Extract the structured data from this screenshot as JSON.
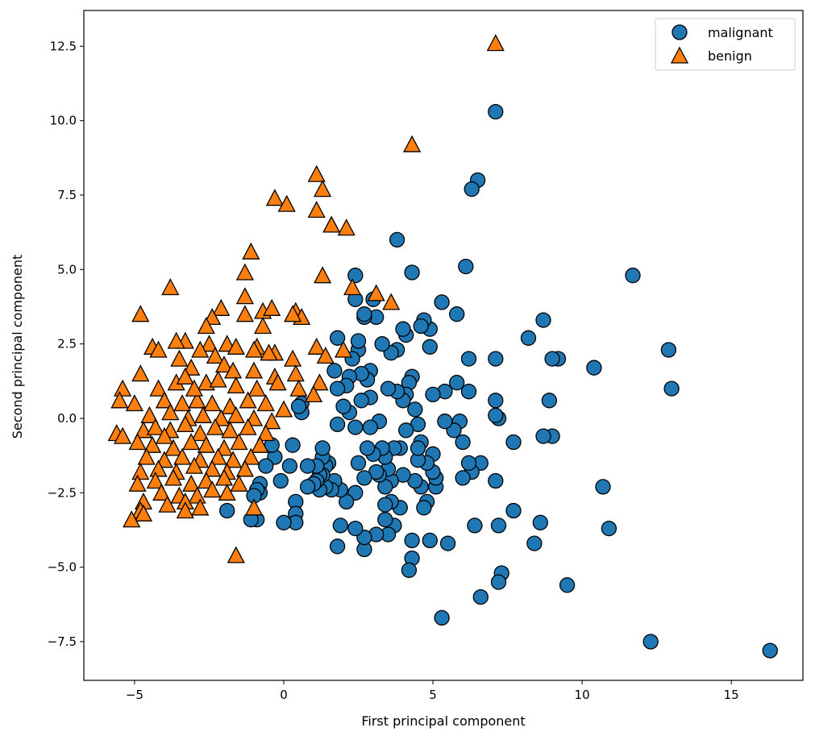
{
  "chart_data": {
    "type": "scatter",
    "title": "",
    "xlabel": "First principal component",
    "ylabel": "Second principal component",
    "xlim": [
      -6.7,
      17.4
    ],
    "ylim": [
      -8.8,
      13.7
    ],
    "xticks": [
      -5,
      0,
      5,
      10,
      15
    ],
    "xtick_labels": [
      "−5",
      "0",
      "5",
      "10",
      "15"
    ],
    "yticks": [
      -7.5,
      -5.0,
      -2.5,
      0.0,
      2.5,
      5.0,
      7.5,
      10.0,
      12.5
    ],
    "ytick_labels": [
      "−7.5",
      "−5.0",
      "−2.5",
      "0.0",
      "2.5",
      "5.0",
      "7.5",
      "10.0",
      "12.5"
    ],
    "grid": false,
    "legend_position": "top-right",
    "series": [
      {
        "name": "malignant",
        "marker": "circle",
        "color": "#1f77b4",
        "points": [
          [
            16.3,
            -7.8
          ],
          [
            12.3,
            -7.5
          ],
          [
            13.0,
            1.0
          ],
          [
            12.9,
            2.3
          ],
          [
            11.7,
            4.8
          ],
          [
            10.9,
            -3.7
          ],
          [
            10.7,
            -2.3
          ],
          [
            10.4,
            1.7
          ],
          [
            9.5,
            -5.6
          ],
          [
            9.2,
            2.0
          ],
          [
            9.0,
            2.0
          ],
          [
            9.0,
            -0.6
          ],
          [
            8.9,
            0.6
          ],
          [
            8.7,
            3.3
          ],
          [
            8.7,
            -0.6
          ],
          [
            8.6,
            -3.5
          ],
          [
            8.4,
            -4.2
          ],
          [
            8.2,
            2.7
          ],
          [
            7.7,
            -0.8
          ],
          [
            7.7,
            -3.1
          ],
          [
            7.3,
            -5.2
          ],
          [
            7.2,
            -5.5
          ],
          [
            7.2,
            -3.6
          ],
          [
            7.2,
            0.0
          ],
          [
            7.1,
            0.1
          ],
          [
            7.1,
            -2.1
          ],
          [
            7.1,
            2.0
          ],
          [
            7.1,
            0.6
          ],
          [
            7.1,
            10.3
          ],
          [
            6.6,
            -6.0
          ],
          [
            6.6,
            -1.5
          ],
          [
            6.5,
            8.0
          ],
          [
            6.4,
            -3.6
          ],
          [
            6.3,
            7.7
          ],
          [
            6.3,
            -1.8
          ],
          [
            6.2,
            -1.5
          ],
          [
            6.2,
            0.9
          ],
          [
            6.2,
            2.0
          ],
          [
            6.1,
            5.1
          ],
          [
            6.0,
            -2.0
          ],
          [
            6.0,
            -0.8
          ],
          [
            5.9,
            -0.1
          ],
          [
            5.8,
            1.2
          ],
          [
            5.8,
            3.5
          ],
          [
            5.7,
            -0.4
          ],
          [
            5.5,
            -4.2
          ],
          [
            5.4,
            0.9
          ],
          [
            5.4,
            -0.1
          ],
          [
            5.3,
            3.9
          ],
          [
            5.3,
            -6.7
          ],
          [
            5.1,
            -2.3
          ],
          [
            5.1,
            -2.0
          ],
          [
            5.0,
            -1.8
          ],
          [
            5.0,
            -1.2
          ],
          [
            5.0,
            0.8
          ],
          [
            4.9,
            3.0
          ],
          [
            4.9,
            2.4
          ],
          [
            4.9,
            -4.1
          ],
          [
            4.8,
            -1.5
          ],
          [
            4.8,
            -2.8
          ],
          [
            4.7,
            -3.0
          ],
          [
            4.7,
            3.3
          ],
          [
            4.6,
            3.1
          ],
          [
            4.6,
            -0.8
          ],
          [
            4.6,
            -2.3
          ],
          [
            4.5,
            -0.2
          ],
          [
            4.5,
            -1.4
          ],
          [
            4.5,
            -1.0
          ],
          [
            4.4,
            0.3
          ],
          [
            4.4,
            -2.1
          ],
          [
            4.3,
            4.9
          ],
          [
            4.3,
            -4.1
          ],
          [
            4.3,
            1.4
          ],
          [
            4.3,
            -4.7
          ],
          [
            4.2,
            -5.1
          ],
          [
            4.2,
            1.2
          ],
          [
            4.1,
            0.8
          ],
          [
            4.1,
            -0.4
          ],
          [
            4.1,
            2.8
          ],
          [
            4.0,
            3.0
          ],
          [
            4.0,
            0.6
          ],
          [
            4.0,
            -1.9
          ],
          [
            3.9,
            -1.0
          ],
          [
            3.9,
            -3.0
          ],
          [
            3.8,
            2.3
          ],
          [
            3.8,
            6.0
          ],
          [
            3.8,
            0.9
          ],
          [
            3.7,
            -3.6
          ],
          [
            3.7,
            -1.0
          ],
          [
            3.6,
            -2.1
          ],
          [
            3.6,
            -2.8
          ],
          [
            3.6,
            2.2
          ],
          [
            3.5,
            1.0
          ],
          [
            3.5,
            -1.7
          ],
          [
            3.5,
            -3.9
          ],
          [
            3.4,
            -3.4
          ],
          [
            3.4,
            -2.3
          ],
          [
            3.4,
            -2.9
          ],
          [
            3.4,
            -1.3
          ],
          [
            3.3,
            2.5
          ],
          [
            3.3,
            -1.0
          ],
          [
            3.2,
            -0.1
          ],
          [
            3.2,
            -1.9
          ],
          [
            3.1,
            3.4
          ],
          [
            3.1,
            -3.9
          ],
          [
            3.1,
            -1.8
          ],
          [
            3.0,
            4.0
          ],
          [
            3.0,
            -1.2
          ],
          [
            2.9,
            1.6
          ],
          [
            2.9,
            0.7
          ],
          [
            2.9,
            -0.3
          ],
          [
            2.8,
            -1.0
          ],
          [
            2.8,
            1.3
          ],
          [
            2.7,
            3.4
          ],
          [
            2.7,
            3.5
          ],
          [
            2.7,
            -4.4
          ],
          [
            2.7,
            -4.0
          ],
          [
            2.7,
            -2.0
          ],
          [
            2.6,
            0.6
          ],
          [
            2.6,
            1.5
          ],
          [
            2.5,
            -1.5
          ],
          [
            2.5,
            2.3
          ],
          [
            2.5,
            2.6
          ],
          [
            2.4,
            4.0
          ],
          [
            2.4,
            4.8
          ],
          [
            2.4,
            -0.3
          ],
          [
            2.4,
            -3.7
          ],
          [
            2.4,
            -2.5
          ],
          [
            2.3,
            2.0
          ],
          [
            2.2,
            0.2
          ],
          [
            2.2,
            1.4
          ],
          [
            2.1,
            1.1
          ],
          [
            2.1,
            -2.8
          ],
          [
            2.0,
            0.4
          ],
          [
            1.9,
            -2.4
          ],
          [
            1.9,
            -3.6
          ],
          [
            1.8,
            -4.3
          ],
          [
            1.8,
            -0.2
          ],
          [
            1.8,
            2.7
          ],
          [
            1.8,
            1.0
          ],
          [
            1.7,
            -2.1
          ],
          [
            1.7,
            1.6
          ],
          [
            1.6,
            -2.4
          ],
          [
            1.5,
            -1.5
          ],
          [
            1.4,
            -1.6
          ],
          [
            1.4,
            -2.3
          ],
          [
            1.3,
            -1.9
          ],
          [
            1.3,
            -1.3
          ],
          [
            1.3,
            -1.0
          ],
          [
            1.2,
            -1.9
          ],
          [
            1.2,
            -2.4
          ],
          [
            1.1,
            -1.6
          ],
          [
            1.1,
            -2.1
          ],
          [
            1.0,
            -2.2
          ],
          [
            0.8,
            -2.3
          ],
          [
            0.8,
            -1.6
          ],
          [
            0.6,
            0.5
          ],
          [
            0.6,
            0.2
          ],
          [
            0.5,
            0.4
          ],
          [
            0.4,
            -2.8
          ],
          [
            0.4,
            -3.2
          ],
          [
            0.4,
            -3.5
          ],
          [
            0.3,
            -0.9
          ],
          [
            0.2,
            -1.6
          ],
          [
            0.0,
            -3.5
          ],
          [
            -0.1,
            -2.1
          ],
          [
            -0.3,
            -1.3
          ],
          [
            -0.4,
            -0.9
          ],
          [
            -0.6,
            -1.6
          ],
          [
            -0.8,
            -2.2
          ],
          [
            -0.8,
            -2.5
          ],
          [
            -0.9,
            -2.4
          ],
          [
            -0.9,
            -3.4
          ],
          [
            -1.0,
            -2.6
          ],
          [
            -1.1,
            -3.4
          ],
          [
            -1.9,
            -3.1
          ]
        ]
      },
      {
        "name": "benign",
        "marker": "triangle",
        "color": "#ff7f0e",
        "points": [
          [
            7.1,
            12.6
          ],
          [
            4.3,
            9.2
          ],
          [
            1.1,
            8.2
          ],
          [
            1.3,
            7.7
          ],
          [
            -0.3,
            7.4
          ],
          [
            0.1,
            7.2
          ],
          [
            1.1,
            7.0
          ],
          [
            1.6,
            6.5
          ],
          [
            2.1,
            6.4
          ],
          [
            -1.1,
            5.6
          ],
          [
            -1.3,
            4.9
          ],
          [
            1.3,
            4.8
          ],
          [
            2.3,
            4.4
          ],
          [
            -3.8,
            4.4
          ],
          [
            3.1,
            4.2
          ],
          [
            -1.3,
            4.1
          ],
          [
            3.6,
            3.9
          ],
          [
            -0.7,
            3.6
          ],
          [
            -0.4,
            3.7
          ],
          [
            -2.1,
            3.7
          ],
          [
            0.4,
            3.6
          ],
          [
            0.6,
            3.4
          ],
          [
            0.3,
            3.5
          ],
          [
            -4.8,
            3.5
          ],
          [
            -2.4,
            3.4
          ],
          [
            -1.3,
            3.5
          ],
          [
            -2.6,
            3.1
          ],
          [
            -0.7,
            3.1
          ],
          [
            -3.3,
            2.6
          ],
          [
            -3.6,
            2.6
          ],
          [
            -2.5,
            2.5
          ],
          [
            -1.9,
            2.5
          ],
          [
            -1.6,
            2.4
          ],
          [
            -2.8,
            2.3
          ],
          [
            -4.4,
            2.4
          ],
          [
            -4.2,
            2.3
          ],
          [
            -0.9,
            2.4
          ],
          [
            -0.3,
            2.2
          ],
          [
            1.1,
            2.4
          ],
          [
            1.4,
            2.1
          ],
          [
            2.0,
            2.3
          ],
          [
            0.3,
            2.0
          ],
          [
            -0.5,
            2.2
          ],
          [
            -1.0,
            2.3
          ],
          [
            -2.3,
            2.1
          ],
          [
            -3.5,
            2.0
          ],
          [
            -3.1,
            1.7
          ],
          [
            -2.0,
            1.8
          ],
          [
            -1.7,
            1.6
          ],
          [
            -1.0,
            1.6
          ],
          [
            -0.3,
            1.4
          ],
          [
            0.4,
            1.5
          ],
          [
            1.2,
            1.2
          ],
          [
            -4.8,
            1.5
          ],
          [
            -5.4,
            1.0
          ],
          [
            -4.2,
            1.0
          ],
          [
            -3.6,
            1.2
          ],
          [
            -3.3,
            1.4
          ],
          [
            -2.6,
            1.2
          ],
          [
            -2.2,
            1.3
          ],
          [
            -1.6,
            1.1
          ],
          [
            -0.9,
            1.0
          ],
          [
            -0.2,
            1.2
          ],
          [
            0.5,
            1.0
          ],
          [
            1.0,
            0.8
          ],
          [
            -5.5,
            0.6
          ],
          [
            -5.0,
            0.5
          ],
          [
            -4.0,
            0.6
          ],
          [
            -3.4,
            0.5
          ],
          [
            -2.9,
            0.6
          ],
          [
            -2.4,
            0.5
          ],
          [
            -1.8,
            0.4
          ],
          [
            -1.2,
            0.6
          ],
          [
            -0.6,
            0.5
          ],
          [
            0.0,
            0.3
          ],
          [
            -4.5,
            0.1
          ],
          [
            -3.8,
            0.2
          ],
          [
            -3.2,
            0.0
          ],
          [
            -2.7,
            0.1
          ],
          [
            -2.1,
            0.0
          ],
          [
            -1.6,
            0.1
          ],
          [
            -1.0,
            0.0
          ],
          [
            -0.4,
            -0.1
          ],
          [
            -5.6,
            -0.5
          ],
          [
            -5.4,
            -0.6
          ],
          [
            -4.7,
            -0.4
          ],
          [
            -4.3,
            -0.3
          ],
          [
            -3.8,
            -0.4
          ],
          [
            -3.3,
            -0.2
          ],
          [
            -2.8,
            -0.5
          ],
          [
            -2.3,
            -0.3
          ],
          [
            -1.8,
            -0.4
          ],
          [
            -1.2,
            -0.3
          ],
          [
            -0.6,
            -0.5
          ],
          [
            -4.9,
            -0.8
          ],
          [
            -4.4,
            -0.9
          ],
          [
            -3.7,
            -1.0
          ],
          [
            -3.1,
            -0.8
          ],
          [
            -2.6,
            -0.9
          ],
          [
            -2.0,
            -1.0
          ],
          [
            -1.5,
            -0.8
          ],
          [
            -0.8,
            -0.9
          ],
          [
            -4.6,
            -1.3
          ],
          [
            -4.0,
            -1.4
          ],
          [
            -3.4,
            -1.3
          ],
          [
            -2.8,
            -1.4
          ],
          [
            -2.2,
            -1.3
          ],
          [
            -1.7,
            -1.4
          ],
          [
            -1.1,
            -1.3
          ],
          [
            -4.8,
            -1.8
          ],
          [
            -4.2,
            -1.7
          ],
          [
            -3.6,
            -1.8
          ],
          [
            -3.0,
            -1.6
          ],
          [
            -2.4,
            -1.7
          ],
          [
            -1.9,
            -1.8
          ],
          [
            -1.3,
            -1.7
          ],
          [
            -4.9,
            -2.2
          ],
          [
            -4.3,
            -2.1
          ],
          [
            -3.7,
            -2.0
          ],
          [
            -3.1,
            -2.2
          ],
          [
            -2.6,
            -2.1
          ],
          [
            -2.0,
            -2.0
          ],
          [
            -1.5,
            -2.2
          ],
          [
            -4.1,
            -2.5
          ],
          [
            -3.5,
            -2.6
          ],
          [
            -2.9,
            -2.6
          ],
          [
            -2.4,
            -2.4
          ],
          [
            -1.9,
            -2.5
          ],
          [
            -4.7,
            -2.8
          ],
          [
            -3.9,
            -2.9
          ],
          [
            -3.3,
            -2.8
          ],
          [
            -2.8,
            -3.0
          ],
          [
            -4.8,
            -3.1
          ],
          [
            -4.7,
            -3.2
          ],
          [
            -3.3,
            -3.1
          ],
          [
            -5.1,
            -3.4
          ],
          [
            -1.6,
            -4.6
          ],
          [
            -1.0,
            -3.0
          ],
          [
            -4.0,
            -0.6
          ],
          [
            -3.0,
            1.0
          ]
        ]
      }
    ]
  }
}
